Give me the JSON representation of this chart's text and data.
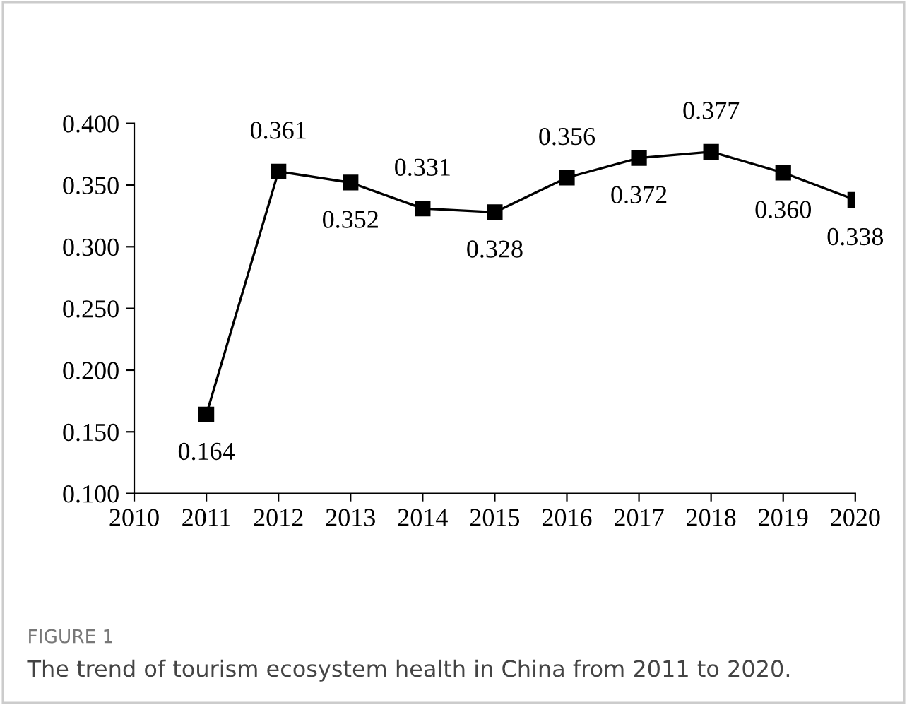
{
  "chart_data": {
    "type": "line",
    "x": [
      2011,
      2012,
      2013,
      2014,
      2015,
      2016,
      2017,
      2018,
      2019,
      2020
    ],
    "series": [
      {
        "color": "#000000",
        "values": [
          0.164,
          0.361,
          0.352,
          0.331,
          0.328,
          0.356,
          0.372,
          0.377,
          0.36,
          0.338
        ],
        "value_labels": [
          "0.164",
          "0.361",
          "0.352",
          "0.331",
          "0.328",
          "0.356",
          "0.372",
          "0.377",
          "0.360",
          "0.338"
        ]
      }
    ],
    "xlim": [
      2010,
      2020
    ],
    "xticks": [
      2010,
      2011,
      2012,
      2013,
      2014,
      2015,
      2016,
      2017,
      2018,
      2019,
      2020
    ],
    "ylim": [
      0.1,
      0.4
    ],
    "yticks": [
      {
        "value": 0.1,
        "label": "0.100"
      },
      {
        "value": 0.15,
        "label": "0.150"
      },
      {
        "value": 0.2,
        "label": "0.200"
      },
      {
        "value": 0.25,
        "label": "0.250"
      },
      {
        "value": 0.3,
        "label": "0.300"
      },
      {
        "value": 0.35,
        "label": "0.350"
      },
      {
        "value": 0.4,
        "label": "0.400"
      }
    ],
    "marker": "square",
    "line_style": "solid",
    "grid": false,
    "legend": false,
    "annotations": [
      "FIGURE 1",
      "The trend of tourism ecosystem health in China from 2011 to 2020."
    ]
  }
}
